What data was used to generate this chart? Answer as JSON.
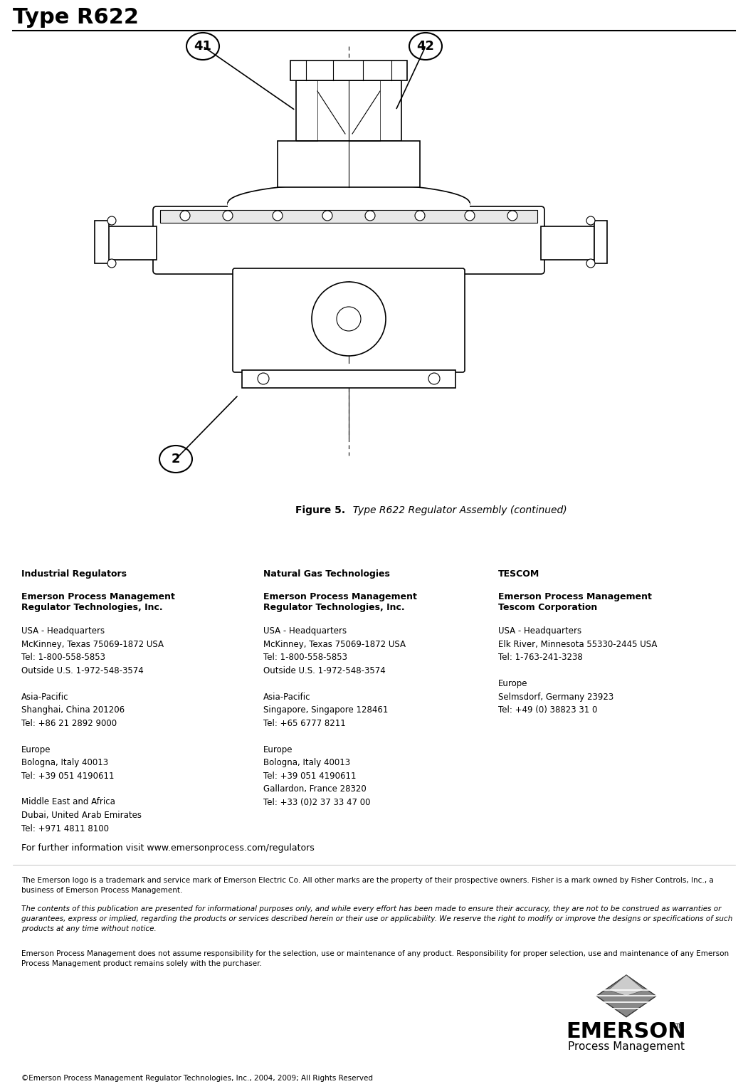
{
  "title": "Type R622",
  "figure_caption_bold": "Figure 5.",
  "figure_caption_normal": "  Type R622 Regulator Assembly (continued)",
  "background_color": "#ffffff",
  "text_color": "#000000",
  "col1_header": "Industrial Regulators",
  "col1_subheader_line1": "Emerson Process Management",
  "col1_subheader_line2": "Regulator Technologies, Inc.",
  "col1_body": "USA - Headquarters\nMcKinney, Texas 75069-1872 USA\nTel: 1-800-558-5853\nOutside U.S. 1-972-548-3574\n\nAsia-Pacific\nShanghai, China 201206\nTel: +86 21 2892 9000\n\nEurope\nBologna, Italy 40013\nTel: +39 051 4190611\n\nMiddle East and Africa\nDubai, United Arab Emirates\nTel: +971 4811 8100",
  "col2_header": "Natural Gas Technologies",
  "col2_subheader_line1": "Emerson Process Management",
  "col2_subheader_line2": "Regulator Technologies, Inc.",
  "col2_body": "USA - Headquarters\nMcKinney, Texas 75069-1872 USA\nTel: 1-800-558-5853\nOutside U.S. 1-972-548-3574\n\nAsia-Pacific\nSingapore, Singapore 128461\nTel: +65 6777 8211\n\nEurope\nBologna, Italy 40013\nTel: +39 051 4190611\nGallardon, France 28320\nTel: +33 (0)2 37 33 47 00",
  "col3_header": "TESCOM",
  "col3_subheader_line1": "Emerson Process Management",
  "col3_subheader_line2": "Tescom Corporation",
  "col3_body": "USA - Headquarters\nElk River, Minnesota 55330-2445 USA\nTel: 1-763-241-3238\n\nEurope\nSelmsdorf, Germany 23923\nTel: +49 (0) 38823 31 0",
  "further_info": "For further information visit www.emersonprocess.com/regulators",
  "disclaimer1": "The Emerson logo is a trademark and service mark of Emerson Electric Co. All other marks are the property of their prospective owners. Fisher is a mark owned by Fisher Controls, Inc., a\nbusiness of Emerson Process Management.",
  "disclaimer2": "The contents of this publication are presented for informational purposes only, and while every effort has been made to ensure their accuracy, they are not to be construed as warranties or\nguarantees, express or implied, regarding the products or services described herein or their use or applicability. We reserve the right to modify or improve the designs or specifications of such\nproducts at any time without notice.",
  "disclaimer3": "Emerson Process Management does not assume responsibility for the selection, use or maintenance of any product. Responsibility for proper selection, use and maintenance of any Emerson\nProcess Management product remains solely with the purchaser.",
  "copyright": "©Emerson Process Management Regulator Technologies, Inc., 2004, 2009; All Rights Reserved",
  "page_width": 10.51,
  "page_height": 15.23,
  "lw": 1.2
}
